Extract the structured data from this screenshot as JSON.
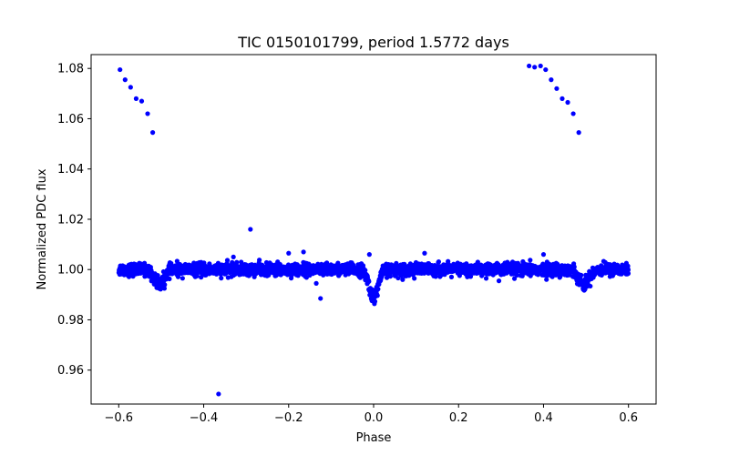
{
  "chart_data": {
    "type": "scatter",
    "title": "TIC 0150101799, period 1.5772 days",
    "xlabel": "Phase",
    "ylabel": "Normalized PDC flux",
    "xlim": [
      -0.665,
      0.665
    ],
    "ylim": [
      0.9465,
      1.0855
    ],
    "x_ticks": [
      -0.6,
      -0.4,
      -0.2,
      0.0,
      0.2,
      0.4,
      0.6
    ],
    "x_tick_labels": [
      "−0.6",
      "−0.4",
      "−0.2",
      "0.0",
      "0.2",
      "0.4",
      "0.6"
    ],
    "y_ticks": [
      0.96,
      0.98,
      1.0,
      1.02,
      1.04,
      1.06,
      1.08
    ],
    "y_tick_labels": [
      "0.96",
      "0.98",
      "1.00",
      "1.02",
      "1.04",
      "1.06",
      "1.08"
    ],
    "grid": false,
    "legend": "none",
    "marker_color": "#0000ff",
    "series": [
      {
        "baseline_flux": 1.0,
        "baseline_scatter": 0.0012,
        "phase_range": [
          -0.6,
          0.6
        ],
        "eclipses": [
          {
            "phase": 0.0,
            "depth": 0.011,
            "half_width": 0.018
          },
          {
            "phase": -0.505,
            "depth": 0.006,
            "half_width": 0.02
          },
          {
            "phase": 0.495,
            "depth": 0.006,
            "half_width": 0.02
          }
        ],
        "outliers": [
          {
            "x": -0.597,
            "y": 1.0795
          },
          {
            "x": -0.585,
            "y": 1.0755
          },
          {
            "x": -0.572,
            "y": 1.0725
          },
          {
            "x": -0.559,
            "y": 1.068
          },
          {
            "x": -0.546,
            "y": 1.067
          },
          {
            "x": -0.532,
            "y": 1.062
          },
          {
            "x": -0.52,
            "y": 1.0545
          },
          {
            "x": 0.366,
            "y": 1.081
          },
          {
            "x": 0.379,
            "y": 1.0805
          },
          {
            "x": 0.393,
            "y": 1.081
          },
          {
            "x": 0.405,
            "y": 1.0795
          },
          {
            "x": 0.418,
            "y": 1.0755
          },
          {
            "x": 0.431,
            "y": 1.072
          },
          {
            "x": 0.444,
            "y": 1.068
          },
          {
            "x": 0.457,
            "y": 1.0665
          },
          {
            "x": 0.47,
            "y": 1.062
          },
          {
            "x": 0.483,
            "y": 1.0545
          },
          {
            "x": -0.29,
            "y": 1.016
          },
          {
            "x": -0.365,
            "y": 0.9505
          },
          {
            "x": -0.125,
            "y": 0.9885
          },
          {
            "x": -0.135,
            "y": 0.9945
          },
          {
            "x": -0.2,
            "y": 1.0065
          },
          {
            "x": -0.165,
            "y": 1.007
          },
          {
            "x": -0.33,
            "y": 1.005
          },
          {
            "x": -0.01,
            "y": 1.006
          },
          {
            "x": 0.12,
            "y": 1.0065
          },
          {
            "x": 0.4,
            "y": 1.006
          },
          {
            "x": 0.295,
            "y": 0.9955
          },
          {
            "x": 0.265,
            "y": 0.9965
          }
        ]
      }
    ]
  }
}
